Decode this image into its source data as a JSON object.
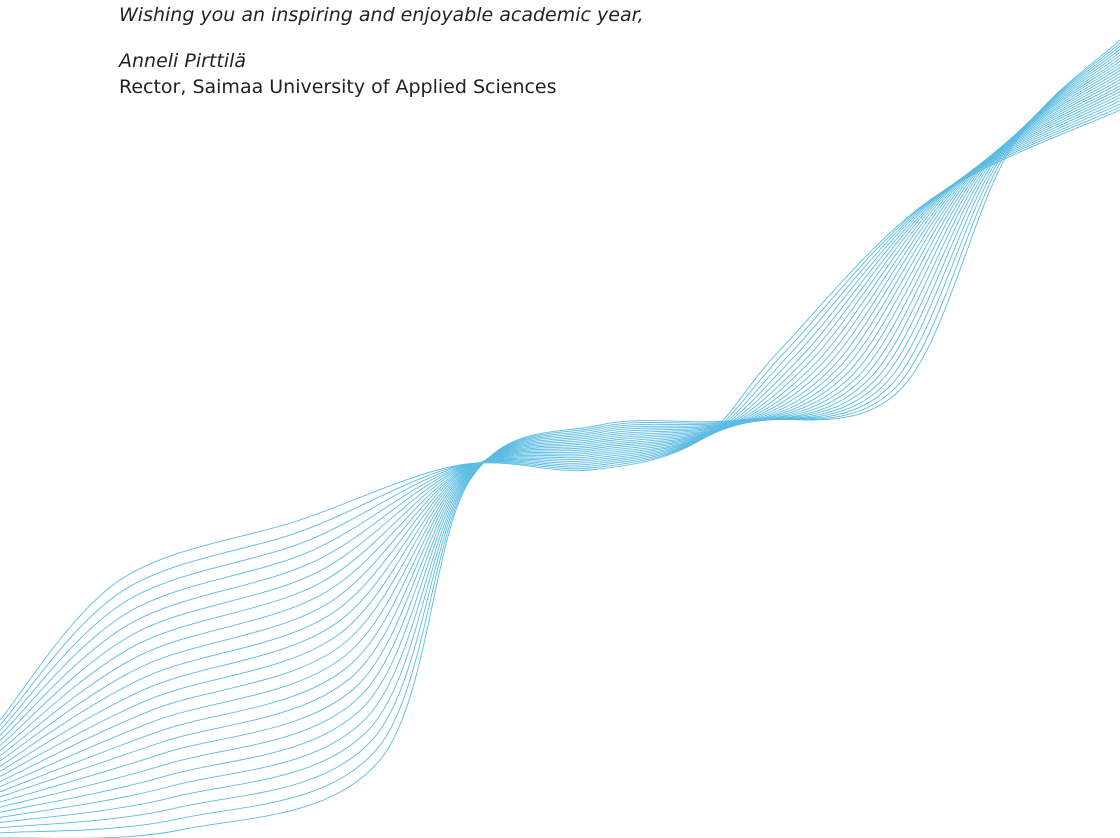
{
  "letter": {
    "closing": "Wishing you an inspiring and enjoyable academic year,",
    "signature_name": "Anneli Pirttilä",
    "signature_title": "Rector, Saimaa University of Applied Sciences"
  },
  "decoration": {
    "wave_color": "#5bbbe3",
    "line_count": 24
  }
}
